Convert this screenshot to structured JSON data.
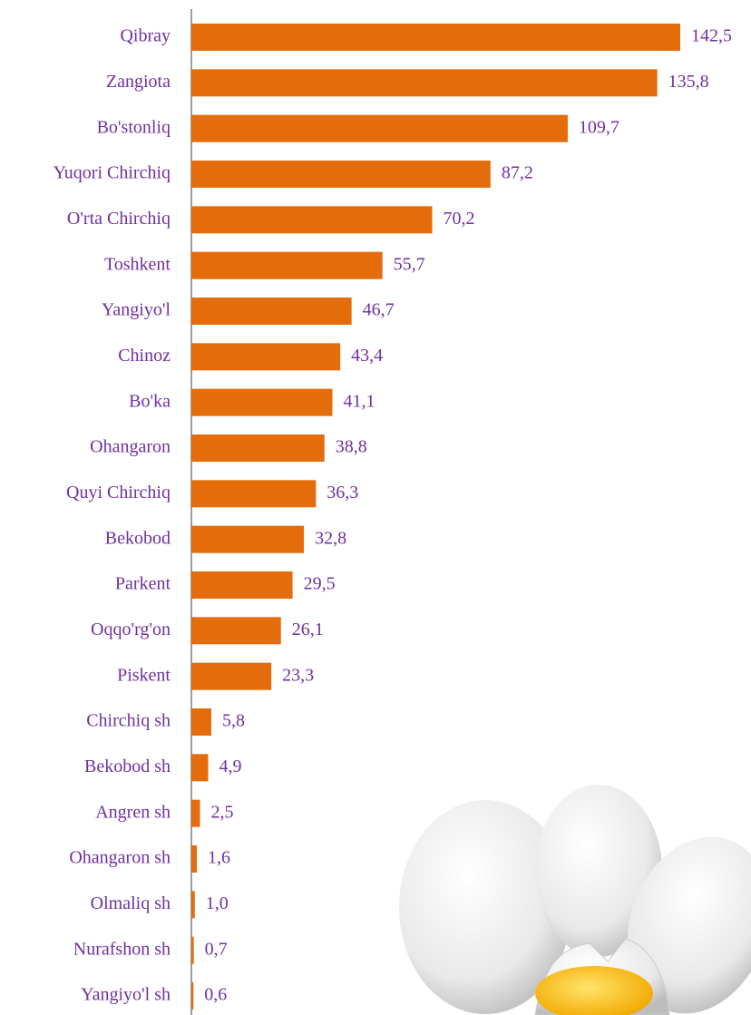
{
  "chart_data": {
    "type": "bar",
    "orientation": "horizontal",
    "categories": [
      "Qibray",
      "Zangiota",
      "Bo'stonliq",
      "Yuqori Chirchiq",
      "O'rta Chirchiq",
      "Toshkent",
      "Yangiyo'l",
      "Chinoz",
      "Bo'ka",
      "Ohangaron",
      "Quyi Chirchiq",
      "Bekobod",
      "Parkent",
      "Oqqo'rg'on",
      "Piskent",
      "Chirchiq sh",
      "Bekobod sh",
      "Angren sh",
      "Ohangaron sh",
      "Olmaliq sh",
      "Nurafshon sh",
      "Yangiyo'l sh"
    ],
    "values": [
      142.5,
      135.8,
      109.7,
      87.2,
      70.2,
      55.7,
      46.7,
      43.4,
      41.1,
      38.8,
      36.3,
      32.8,
      29.5,
      26.1,
      23.3,
      5.8,
      4.9,
      2.5,
      1.6,
      1.0,
      0.7,
      0.6
    ],
    "value_labels": [
      "142,5",
      "135,8",
      "109,7",
      "87,2",
      "70,2",
      "55,7",
      "46,7",
      "43,4",
      "41,1",
      "38,8",
      "36,3",
      "32,8",
      "29,5",
      "26,1",
      "23,3",
      "5,8",
      "4,9",
      "2,5",
      "1,6",
      "1,0",
      "0,7",
      "0,6"
    ],
    "color": "#e46c0a",
    "label_color": "#7030a0"
  }
}
